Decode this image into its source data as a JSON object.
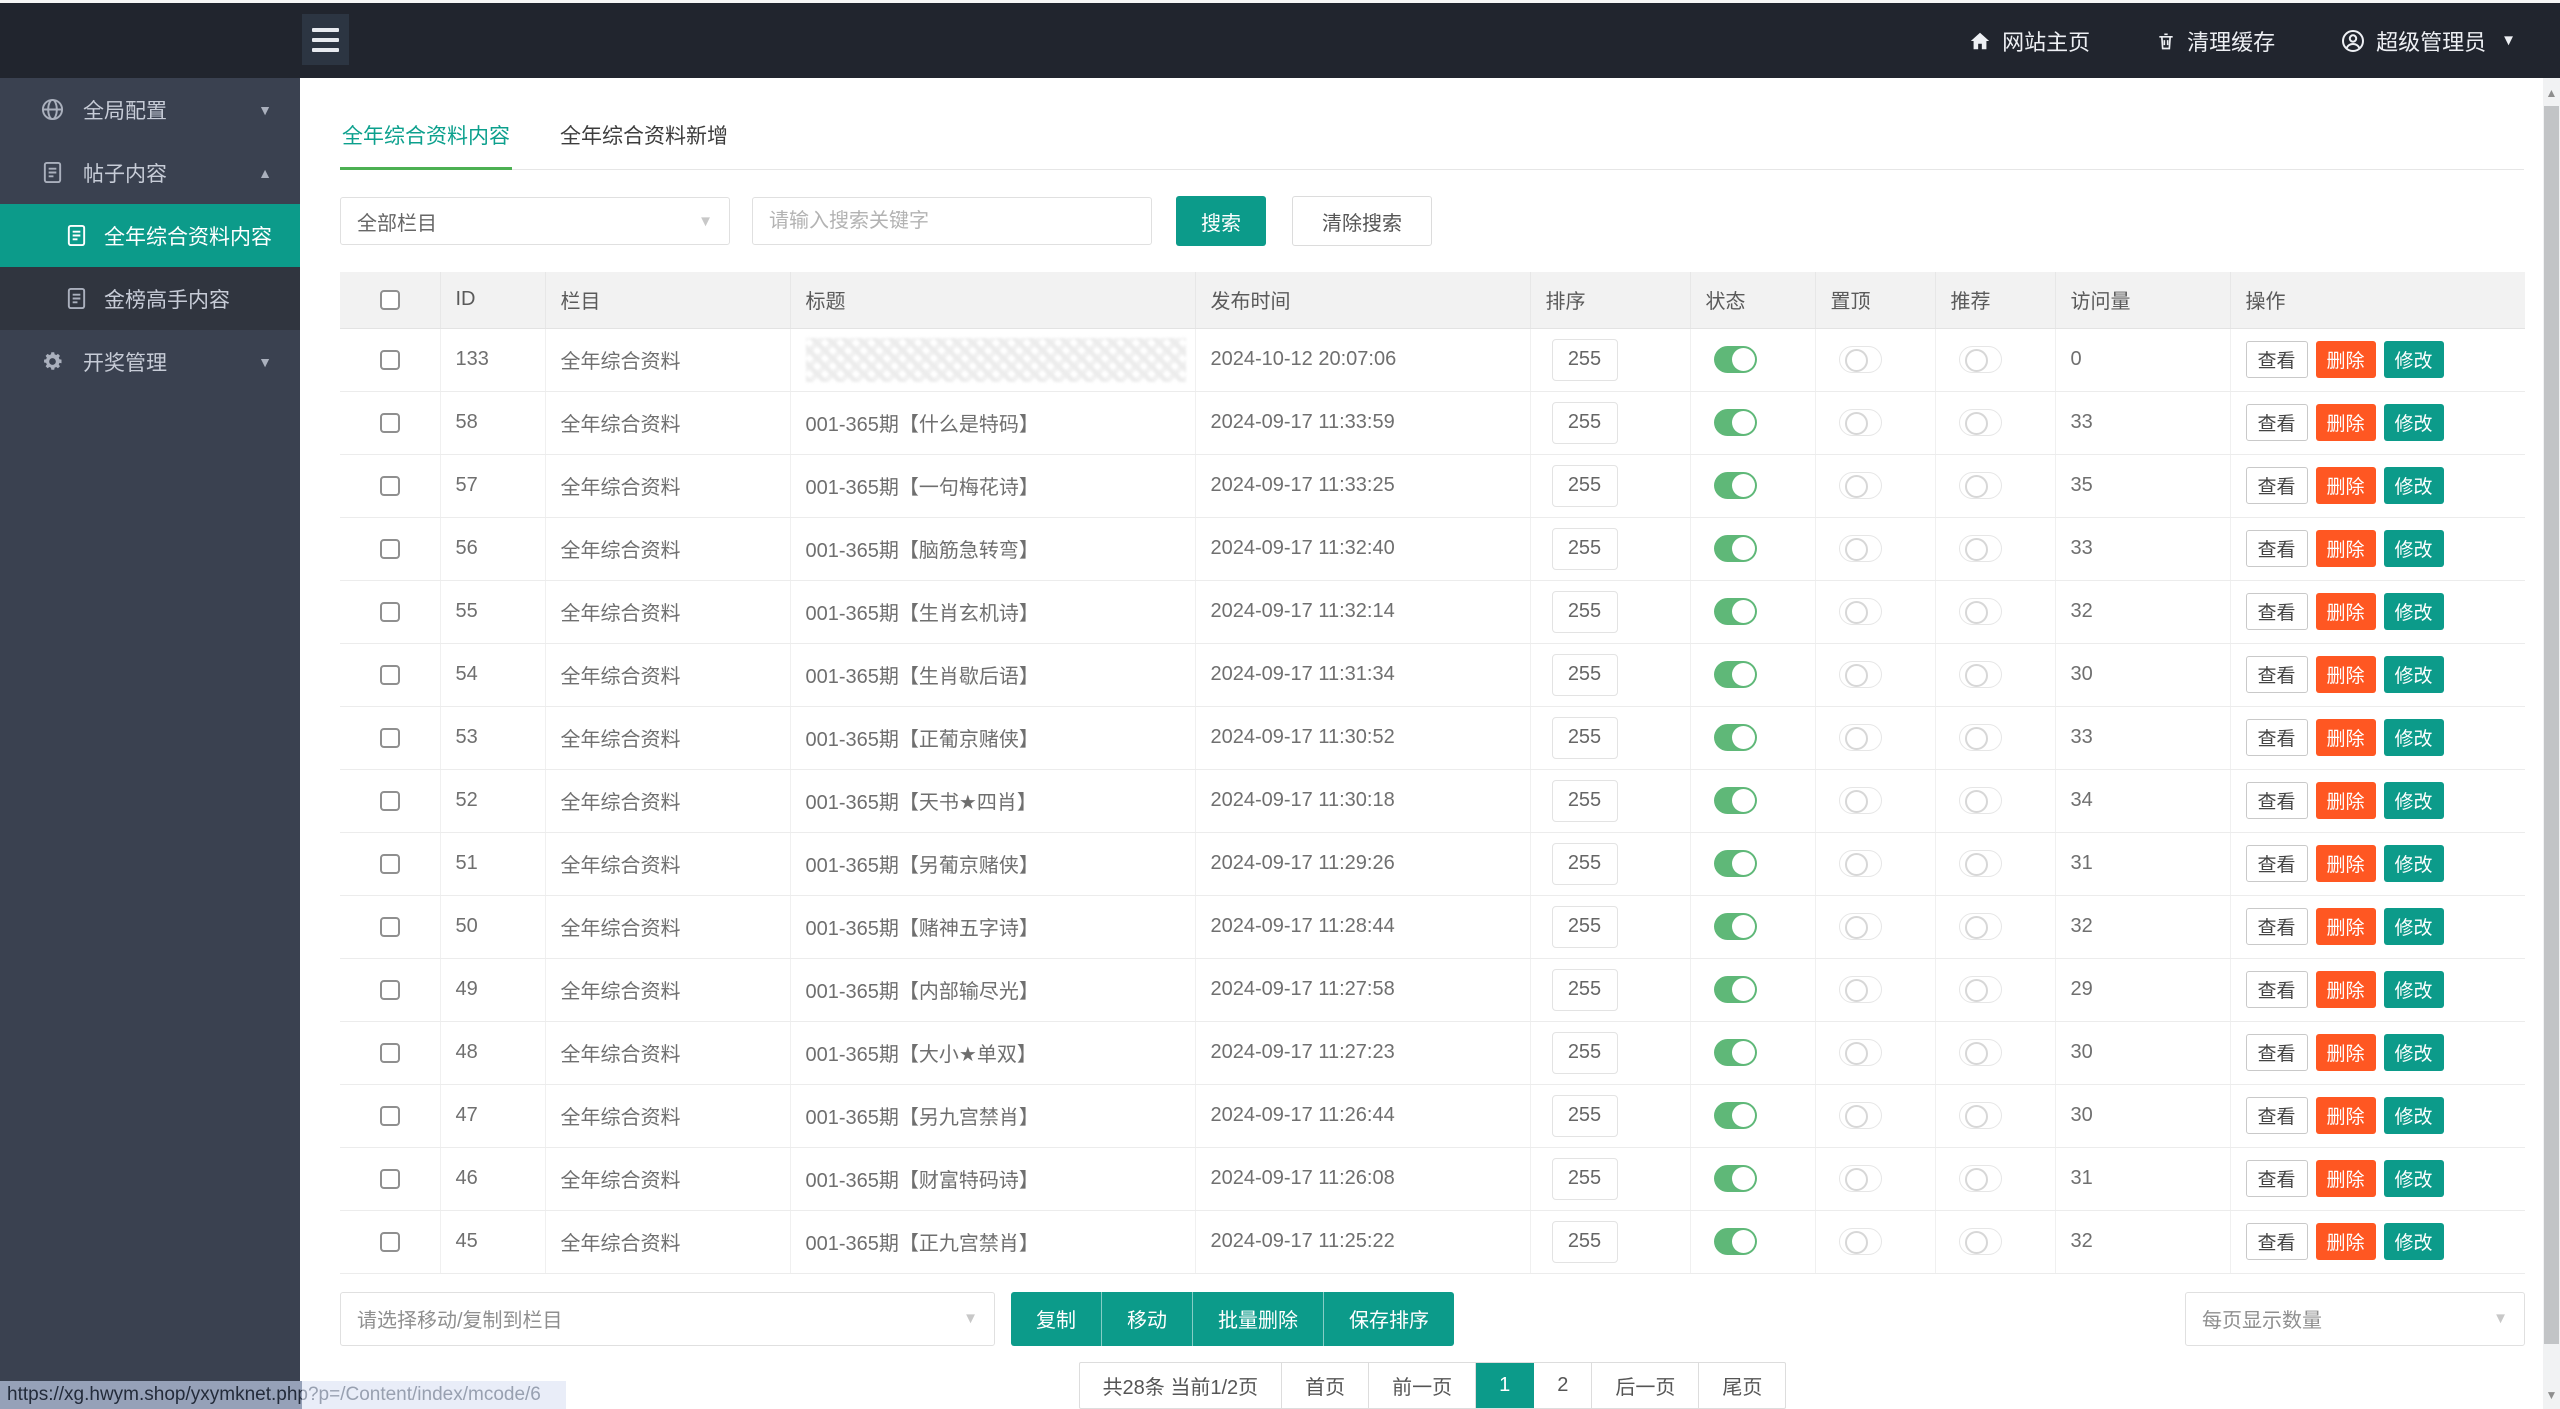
{
  "colors": {
    "accent": "#0c9b8a",
    "tab_underline": "#4cb052",
    "toggle_on": "#5fb878",
    "danger": "#ff5722"
  },
  "topbar": {
    "home": "网站主页",
    "clear_cache": "清理缓存",
    "admin": "超级管理员"
  },
  "sidebar": {
    "global_config": "全局配置",
    "post_content": "帖子内容",
    "annual_data": "全年综合资料内容",
    "gold_list": "金榜高手内容",
    "lottery_mgmt": "开奖管理"
  },
  "tabs": {
    "content": "全年综合资料内容",
    "add": "全年综合资料新增"
  },
  "filter": {
    "category_select": "全部栏目",
    "search_placeholder": "请输入搜索关键字",
    "search_btn": "搜索",
    "clear_btn": "清除搜索"
  },
  "table": {
    "headers": [
      "ID",
      "栏目",
      "标题",
      "发布时间",
      "排序",
      "状态",
      "置顶",
      "推荐",
      "访问量",
      "操作"
    ],
    "actions": {
      "view": "查看",
      "delete": "删除",
      "edit": "修改"
    },
    "rows": [
      {
        "id": "133",
        "category": "全年综合资料",
        "title": "",
        "redacted": true,
        "time": "2024-10-12 20:07:06",
        "sort": "255",
        "status": true,
        "top": false,
        "recommend": false,
        "visits": "0"
      },
      {
        "id": "58",
        "category": "全年综合资料",
        "title": "001-365期【什么是特码】",
        "redacted": false,
        "time": "2024-09-17 11:33:59",
        "sort": "255",
        "status": true,
        "top": false,
        "recommend": false,
        "visits": "33"
      },
      {
        "id": "57",
        "category": "全年综合资料",
        "title": "001-365期【一句梅花诗】",
        "redacted": false,
        "time": "2024-09-17 11:33:25",
        "sort": "255",
        "status": true,
        "top": false,
        "recommend": false,
        "visits": "35"
      },
      {
        "id": "56",
        "category": "全年综合资料",
        "title": "001-365期【脑筋急转弯】",
        "redacted": false,
        "time": "2024-09-17 11:32:40",
        "sort": "255",
        "status": true,
        "top": false,
        "recommend": false,
        "visits": "33"
      },
      {
        "id": "55",
        "category": "全年综合资料",
        "title": "001-365期【生肖玄机诗】",
        "redacted": false,
        "time": "2024-09-17 11:32:14",
        "sort": "255",
        "status": true,
        "top": false,
        "recommend": false,
        "visits": "32"
      },
      {
        "id": "54",
        "category": "全年综合资料",
        "title": "001-365期【生肖歇后语】",
        "redacted": false,
        "time": "2024-09-17 11:31:34",
        "sort": "255",
        "status": true,
        "top": false,
        "recommend": false,
        "visits": "30"
      },
      {
        "id": "53",
        "category": "全年综合资料",
        "title": "001-365期【正葡京赌侠】",
        "redacted": false,
        "time": "2024-09-17 11:30:52",
        "sort": "255",
        "status": true,
        "top": false,
        "recommend": false,
        "visits": "33"
      },
      {
        "id": "52",
        "category": "全年综合资料",
        "title": "001-365期【天书★四肖】",
        "redacted": false,
        "time": "2024-09-17 11:30:18",
        "sort": "255",
        "status": true,
        "top": false,
        "recommend": false,
        "visits": "34"
      },
      {
        "id": "51",
        "category": "全年综合资料",
        "title": "001-365期【另葡京赌侠】",
        "redacted": false,
        "time": "2024-09-17 11:29:26",
        "sort": "255",
        "status": true,
        "top": false,
        "recommend": false,
        "visits": "31"
      },
      {
        "id": "50",
        "category": "全年综合资料",
        "title": "001-365期【赌神五字诗】",
        "redacted": false,
        "time": "2024-09-17 11:28:44",
        "sort": "255",
        "status": true,
        "top": false,
        "recommend": false,
        "visits": "32"
      },
      {
        "id": "49",
        "category": "全年综合资料",
        "title": "001-365期【内部输尽光】",
        "redacted": false,
        "time": "2024-09-17 11:27:58",
        "sort": "255",
        "status": true,
        "top": false,
        "recommend": false,
        "visits": "29"
      },
      {
        "id": "48",
        "category": "全年综合资料",
        "title": "001-365期【大小★单双】",
        "redacted": false,
        "time": "2024-09-17 11:27:23",
        "sort": "255",
        "status": true,
        "top": false,
        "recommend": false,
        "visits": "30"
      },
      {
        "id": "47",
        "category": "全年综合资料",
        "title": "001-365期【另九宫禁肖】",
        "redacted": false,
        "time": "2024-09-17 11:26:44",
        "sort": "255",
        "status": true,
        "top": false,
        "recommend": false,
        "visits": "30"
      },
      {
        "id": "46",
        "category": "全年综合资料",
        "title": "001-365期【财富特码诗】",
        "redacted": false,
        "time": "2024-09-17 11:26:08",
        "sort": "255",
        "status": true,
        "top": false,
        "recommend": false,
        "visits": "31"
      },
      {
        "id": "45",
        "category": "全年综合资料",
        "title": "001-365期【正九宫禁肖】",
        "redacted": false,
        "time": "2024-09-17 11:25:22",
        "sort": "255",
        "status": true,
        "top": false,
        "recommend": false,
        "visits": "32"
      }
    ]
  },
  "footer": {
    "move_select": "请选择移动/复制到栏目",
    "copy": "复制",
    "move": "移动",
    "batch_delete": "批量删除",
    "save_sort": "保存排序",
    "per_page_select": "每页显示数量"
  },
  "pagination": {
    "summary": "共28条 当前1/2页",
    "first": "首页",
    "prev": "前一页",
    "page1": "1",
    "page2": "2",
    "next": "后一页",
    "last": "尾页"
  },
  "statusbar": {
    "url": "https://xg.hwym.shop/yxymknet.php?p=/Content/index/mcode/6"
  }
}
